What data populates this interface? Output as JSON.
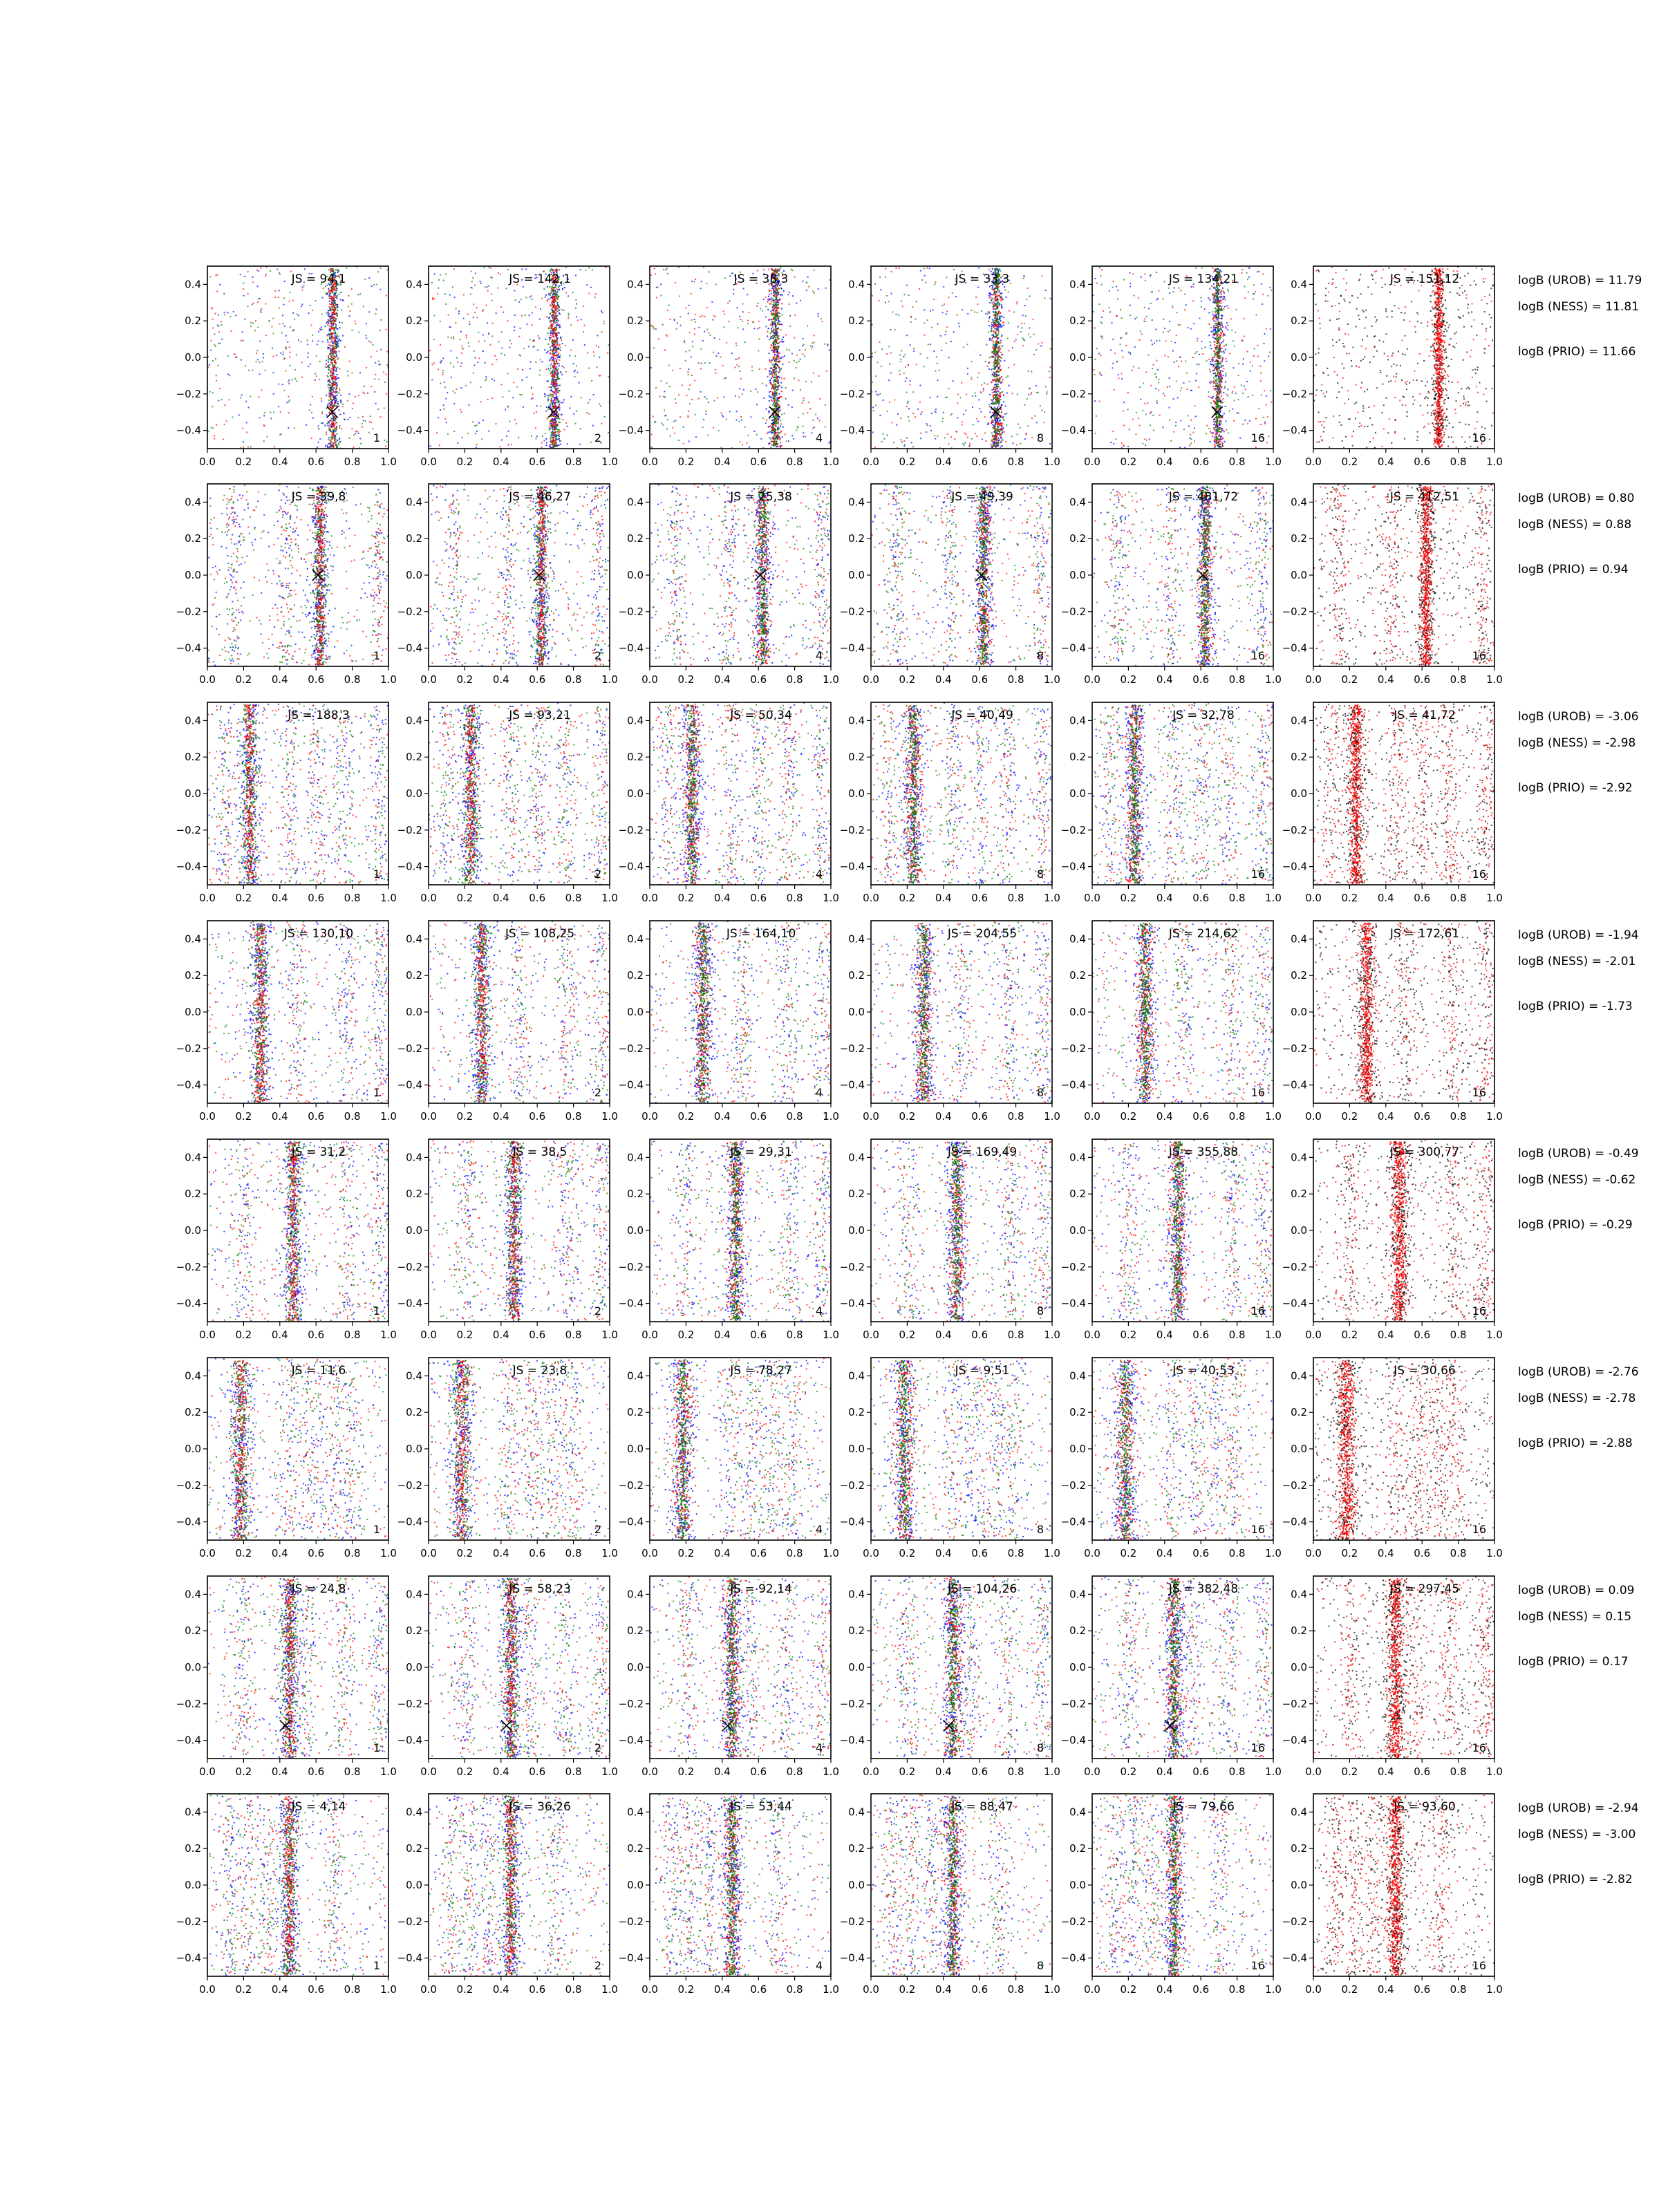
{
  "chart_data": {
    "type": "scatter",
    "grid": false,
    "xlim": [
      0.0,
      1.0
    ],
    "ylim": [
      -0.5,
      0.5
    ],
    "x_ticks": [
      "0.0",
      "0.2",
      "0.4",
      "0.6",
      "0.8",
      "1.0"
    ],
    "y_ticks": [
      "0.4",
      "0.2",
      "0.0",
      "−0.2",
      "−0.4"
    ],
    "y_tick_values": [
      0.4,
      0.2,
      0.0,
      -0.2,
      -0.4
    ],
    "colors": {
      "blue": "#0000ff",
      "green": "#008000",
      "red": "#ff0000",
      "black": "#000000"
    },
    "rows": [
      {
        "js": [
          "JS = 94,1",
          "JS = 142,1",
          "JS = 38,3",
          "JS = 33,3",
          "JS = 134,21",
          "JS = 151,12"
        ],
        "n": [
          "1",
          "2",
          "4",
          "8",
          "16",
          "16"
        ],
        "logB": [
          "logB (UROB) = 11.79",
          "logB (NESS) = 11.81",
          "logB (PRIO) = 11.66"
        ],
        "bands": [
          0.69
        ],
        "strong": 0.69,
        "marker": [
          0.69,
          -0.3
        ],
        "spread": 0.02
      },
      {
        "js": [
          "JS = 39,8",
          "JS = 46,27",
          "JS = 25,38",
          "JS = 49,39",
          "JS = 481,72",
          "JS = 412,51"
        ],
        "n": [
          "1",
          "2",
          "4",
          "8",
          "16",
          "16"
        ],
        "logB": [
          "logB (UROB) = 0.80",
          "logB (NESS) = 0.88",
          "logB (PRIO) = 0.94"
        ],
        "bands": [
          0.14,
          0.43,
          0.62,
          0.94
        ],
        "strong": 0.62,
        "marker": [
          0.61,
          0.0
        ],
        "spread": 0.025
      },
      {
        "js": [
          "JS = 188,3",
          "JS = 93,21",
          "JS = 50,34",
          "JS = 40,49",
          "JS = 32,78",
          "JS = 41,72"
        ],
        "n": [
          "1",
          "2",
          "4",
          "8",
          "16",
          "16"
        ],
        "logB": [
          "logB (UROB) = -3.06",
          "logB (NESS) = -2.98",
          "logB (PRIO) = -2.92"
        ],
        "bands": [
          0.1,
          0.23,
          0.45,
          0.6,
          0.75,
          0.95
        ],
        "strong": 0.23,
        "marker": null,
        "spread": 0.03
      },
      {
        "js": [
          "JS = 130,10",
          "JS = 108,25",
          "JS = 164,10",
          "JS = 204,55",
          "JS = 214,62",
          "JS = 172,61"
        ],
        "n": [
          "1",
          "2",
          "4",
          "8",
          "16",
          "16"
        ],
        "logB": [
          "logB (UROB) = -1.94",
          "logB (NESS) = -2.01",
          "logB (PRIO) = -1.73"
        ],
        "bands": [
          0.29,
          0.5,
          0.76,
          0.95
        ],
        "strong": 0.29,
        "marker": null,
        "spread": 0.03
      },
      {
        "js": [
          "JS = 31,2",
          "JS = 38,5",
          "JS = 29,31",
          "JS = 169,49",
          "JS = 355,88",
          "JS = 300,77"
        ],
        "n": [
          "1",
          "2",
          "4",
          "8",
          "16",
          "16"
        ],
        "logB": [
          "logB (UROB) = -0.49",
          "logB (NESS) = -0.62",
          "logB (PRIO) = -0.29"
        ],
        "bands": [
          0.2,
          0.47,
          0.77,
          0.95
        ],
        "strong": 0.47,
        "marker": null,
        "spread": 0.03
      },
      {
        "js": [
          "JS = 11,6",
          "JS = 23,8",
          "JS = 78,27",
          "JS = 9,51",
          "JS = 40,53",
          "JS = 30,66"
        ],
        "n": [
          "1",
          "2",
          "4",
          "8",
          "16",
          "16"
        ],
        "logB": [
          "logB (UROB) = -2.76",
          "logB (NESS) = -2.78",
          "logB (PRIO) = -2.88"
        ],
        "bands": [
          0.18,
          0.45,
          0.57,
          0.68,
          0.78
        ],
        "strong": 0.18,
        "marker": null,
        "spread": 0.035
      },
      {
        "js": [
          "JS = 24,8",
          "JS = 58,23",
          "JS = 92,14",
          "JS = 104,26",
          "JS = 382,48",
          "JS = 297,45"
        ],
        "n": [
          "1",
          "2",
          "4",
          "8",
          "16",
          "16"
        ],
        "logB": [
          "logB (UROB) = 0.09",
          "logB (NESS) = 0.15",
          "logB (PRIO) = 0.17"
        ],
        "bands": [
          0.2,
          0.45,
          0.55,
          0.75,
          0.95
        ],
        "strong": 0.45,
        "marker": [
          0.43,
          -0.32
        ],
        "spread": 0.03
      },
      {
        "js": [
          "JS = 4,14",
          "JS = 36,26",
          "JS = 53,44",
          "JS = 88,47",
          "JS = 79,66",
          "JS = 93,60"
        ],
        "n": [
          "1",
          "2",
          "4",
          "8",
          "16",
          "16"
        ],
        "logB": [
          "logB (UROB) = -2.94",
          "logB (NESS) = -3.00",
          "logB (PRIO) = -2.82"
        ],
        "bands": [
          0.12,
          0.22,
          0.33,
          0.45,
          0.7
        ],
        "strong": 0.45,
        "marker": null,
        "spread": 0.03
      }
    ]
  }
}
